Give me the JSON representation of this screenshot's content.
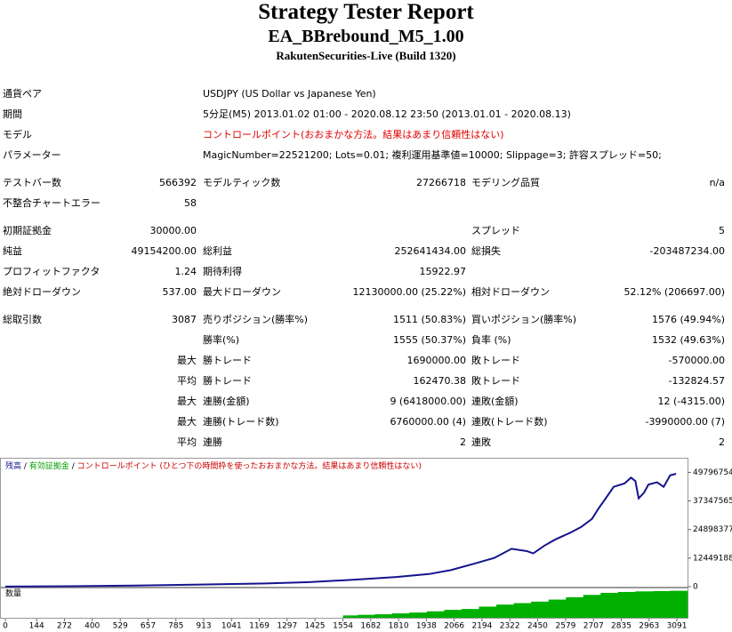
{
  "header": {
    "title": "Strategy Tester Report",
    "subtitle": "EA_BBrebound_M5_1.00",
    "build": "RakutenSecurities-Live (Build 1320)"
  },
  "table": {
    "general": [
      {
        "label": "通貨ペア",
        "value": "USDJPY (US Dollar vs Japanese Yen)"
      },
      {
        "label": "期間",
        "value": "5分足(M5) 2013.01.02 01:00 - 2020.08.12 23:50 (2013.01.01 - 2020.08.13)"
      },
      {
        "label": "モデル",
        "value": "コントロールポイント(おおまかな方法。結果はあまり信頼性はない)"
      },
      {
        "label": "パラメーター",
        "value": "MagicNumber=22521200; Lots=0.01; 複利運用基準値=10000; Slippage=3; 許容スプレッド=50;"
      }
    ],
    "sections": [
      [
        {
          "label": "テストバー数",
          "value": "566392",
          "label2": "モデルティック数",
          "value2": "27266718",
          "label3": "モデリング品質",
          "value3": "n/a"
        },
        {
          "label": "不整合チャートエラー",
          "value": "58"
        }
      ],
      [
        {
          "label": "初期証拠金",
          "value": "30000.00",
          "label3": "スプレッド",
          "value3": "5"
        },
        {
          "label": "純益",
          "value": "49154200.00",
          "label2": "総利益",
          "value2": "252641434.00",
          "label3": "総損失",
          "value3": "-203487234.00"
        },
        {
          "label": "プロフィットファクタ",
          "value": "1.24",
          "label2": "期待利得",
          "value2": "15922.97"
        },
        {
          "label": "絶対ドローダウン",
          "value": "537.00",
          "label2": "最大ドローダウン",
          "value2": "12130000.00 (25.22%)",
          "label3": "相対ドローダウン",
          "value3": "52.12% (206697.00)"
        }
      ],
      [
        {
          "label": "総取引数",
          "value": "3087",
          "label2": "売りポジション(勝率%)",
          "value2": "1511 (50.83%)",
          "label3": "買いポジション(勝率%)",
          "value3": "1576 (49.94%)"
        },
        {
          "label2": "勝率(%)",
          "value2": "1555 (50.37%)",
          "label3": "負率 (%)",
          "value3": "1532 (49.63%)"
        },
        {
          "value": "最大",
          "label2": "勝トレード",
          "value2": "1690000.00",
          "label3": "敗トレード",
          "value3": "-570000.00"
        },
        {
          "value": "平均",
          "label2": "勝トレード",
          "value2": "162470.38",
          "label3": "敗トレード",
          "value3": "-132824.57"
        },
        {
          "value": "最大",
          "label2": "連勝(金額)",
          "value2": "9 (6418000.00)",
          "label3": "連敗(金額)",
          "value3": "12 (-4315.00)"
        },
        {
          "value": "最大",
          "label2": "連勝(トレード数)",
          "value2": "6760000.00 (4)",
          "label3": "連敗(トレード数)",
          "value3": "-3990000.00 (7)"
        },
        {
          "value": "平均",
          "label2": "連勝",
          "value2": "2",
          "label3": "連敗",
          "value3": "2"
        }
      ]
    ]
  },
  "chart_data": {
    "type": "line",
    "series": [
      {
        "name": "残高",
        "color": "#14148c",
        "x": [
          0,
          300,
          600,
          900,
          1200,
          1400,
          1600,
          1800,
          1950,
          2050,
          2150,
          2250,
          2330,
          2400,
          2430,
          2480,
          2530,
          2600,
          2650,
          2700,
          2730,
          2760,
          2800,
          2850,
          2880,
          2900,
          2915,
          2940,
          2960,
          3000,
          3030,
          3060,
          3087
        ],
        "values": [
          30000,
          200000,
          500000,
          900000,
          1400000,
          2000000,
          3000000,
          4200000,
          5500000,
          7200000,
          9800000,
          12500000,
          16500000,
          15500000,
          14500000,
          17800000,
          20500000,
          23500000,
          26000000,
          29500000,
          34000000,
          38000000,
          43500000,
          45000000,
          47500000,
          46000000,
          38500000,
          41000000,
          44500000,
          45500000,
          43500000,
          48500000,
          49184200
        ]
      }
    ],
    "equity_label": {
      "name": "有効証拠金",
      "color": "#00a000"
    },
    "note": {
      "text": "コントロールポイント (ひとつ下の時間枠を使ったおおまかな方法。結果はあまり信頼性はない)",
      "color": "#cc0000"
    },
    "separator": "/",
    "xlim": [
      0,
      3140
    ],
    "xticks": [
      0,
      144,
      272,
      400,
      529,
      657,
      785,
      913,
      1041,
      1169,
      1297,
      1425,
      1554,
      1682,
      1810,
      1938,
      2066,
      2194,
      2322,
      2450,
      2579,
      2707,
      2835,
      2963,
      3091
    ],
    "ylim": [
      0,
      55000000
    ],
    "yticks": [
      0,
      12449188,
      24898377,
      37347565,
      49796754
    ],
    "volume": {
      "label": "数量",
      "color": "#00b000",
      "x": [
        1554,
        1620,
        1700,
        1780,
        1860,
        1940,
        2020,
        2100,
        2180,
        2260,
        2340,
        2420,
        2500,
        2580,
        2660,
        2740,
        2820,
        2900,
        2980,
        3060
      ],
      "values": [
        8,
        10,
        12,
        15,
        18,
        22,
        27,
        30,
        38,
        45,
        50,
        55,
        62,
        70,
        78,
        85,
        88,
        90,
        91,
        92
      ],
      "ylim": [
        0,
        100
      ]
    }
  }
}
